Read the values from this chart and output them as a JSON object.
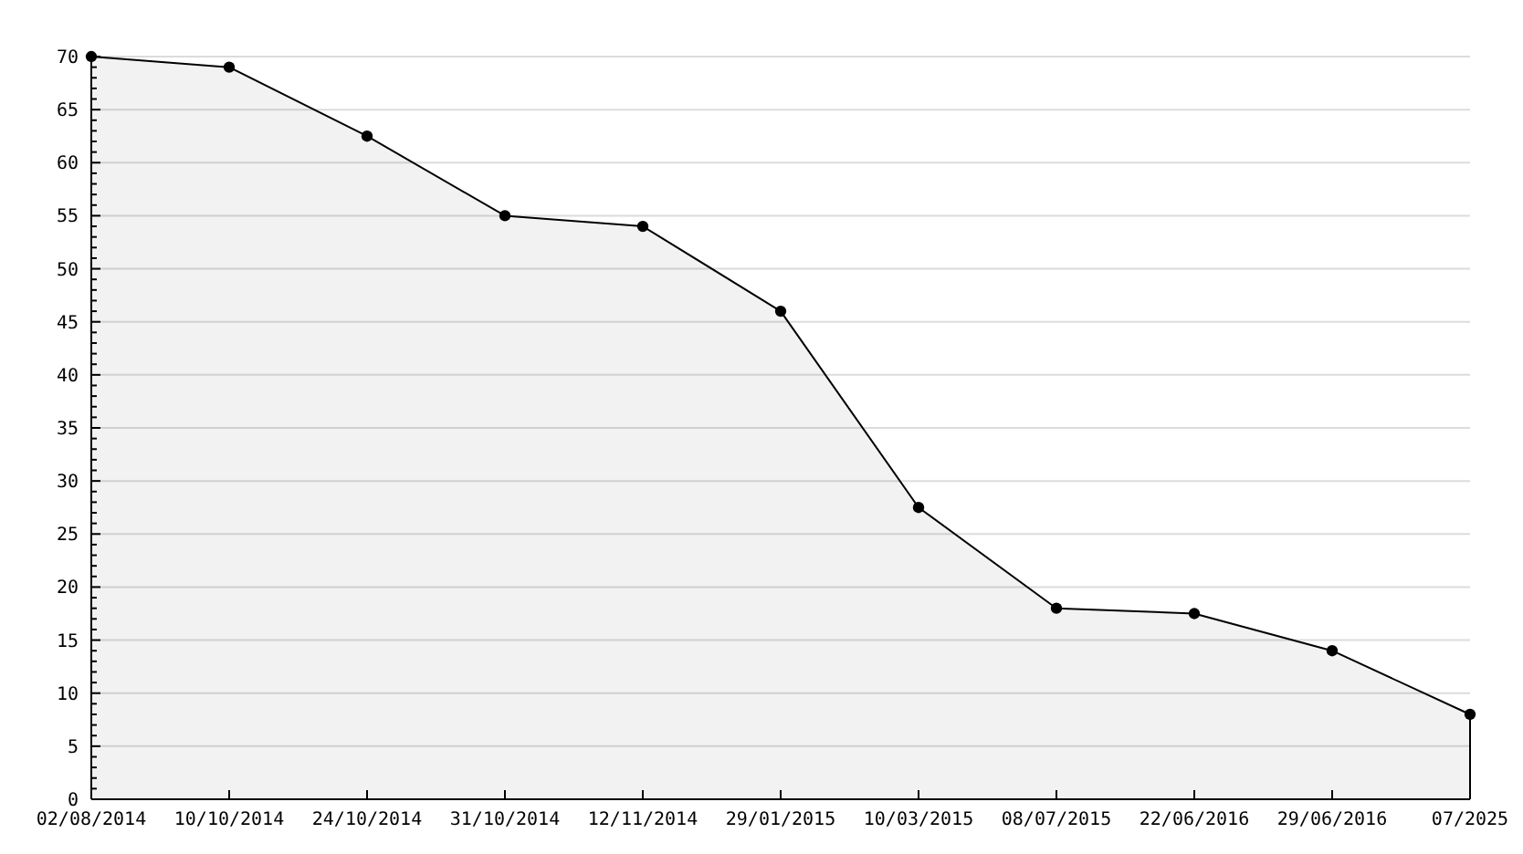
{
  "chart_data": {
    "type": "area",
    "categories": [
      "02/08/2014",
      "10/10/2014",
      "24/10/2014",
      "31/10/2014",
      "12/11/2014",
      "29/01/2015",
      "10/03/2015",
      "08/07/2015",
      "22/06/2016",
      "29/06/2016",
      "07/2025"
    ],
    "series": [
      {
        "color": "#000000",
        "values": [
          70,
          69,
          62.5,
          55,
          54,
          46,
          27.5,
          18,
          17.5,
          14,
          8
        ]
      }
    ],
    "ylim": [
      0,
      70
    ],
    "yticks": [
      0,
      {
        "value": 1,
        "label": null
      },
      {
        "value": 2,
        "label": null
      },
      {
        "value": 3,
        "label": null
      },
      {
        "value": 4,
        "label": null
      },
      5,
      {
        "value": 6,
        "label": null
      },
      {
        "value": 7,
        "label": null
      },
      {
        "value": 8,
        "label": null
      },
      {
        "value": 9,
        "label": null
      },
      10,
      {
        "value": 11,
        "label": null
      },
      {
        "value": 12,
        "label": null
      },
      {
        "value": 13,
        "label": null
      },
      {
        "value": 14,
        "label": null
      },
      15,
      {
        "value": 16,
        "label": null
      },
      {
        "value": 17,
        "label": null
      },
      {
        "value": 18,
        "label": null
      },
      {
        "value": 19,
        "label": null
      },
      20,
      {
        "value": 21,
        "label": null
      },
      {
        "value": 22,
        "label": null
      },
      {
        "value": 23,
        "label": null
      },
      {
        "value": 24,
        "label": null
      },
      25,
      {
        "value": 26,
        "label": null
      },
      {
        "value": 27,
        "label": null
      },
      {
        "value": 28,
        "label": null
      },
      {
        "value": 29,
        "label": null
      },
      30,
      {
        "value": 31,
        "label": null
      },
      {
        "value": 32,
        "label": null
      },
      {
        "value": 33,
        "label": null
      },
      {
        "value": 34,
        "label": null
      },
      35,
      {
        "value": 36,
        "label": null
      },
      {
        "value": 37,
        "label": null
      },
      {
        "value": 38,
        "label": null
      },
      {
        "value": 39,
        "label": null
      },
      40,
      {
        "value": 41,
        "label": null
      },
      {
        "value": 42,
        "label": null
      },
      {
        "value": 43,
        "label": null
      },
      {
        "value": 44,
        "label": null
      },
      45,
      {
        "value": 46,
        "label": null
      },
      {
        "value": 47,
        "label": null
      },
      {
        "value": 48,
        "label": null
      },
      {
        "value": 49,
        "label": null
      },
      50,
      {
        "value": 51,
        "label": null
      },
      {
        "value": 52,
        "label": null
      },
      {
        "value": 53,
        "label": null
      },
      {
        "value": 54,
        "label": null
      },
      55,
      {
        "value": 56,
        "label": null
      },
      {
        "value": 57,
        "label": null
      },
      {
        "value": 58,
        "label": null
      },
      {
        "value": 59,
        "label": null
      },
      60,
      {
        "value": 61,
        "label": null
      },
      {
        "value": 62,
        "label": null
      },
      {
        "value": 63,
        "label": null
      },
      {
        "value": 64,
        "label": null
      },
      65,
      {
        "value": 66,
        "label": null
      },
      {
        "value": 67,
        "label": null
      },
      {
        "value": 68,
        "label": null
      },
      {
        "value": 69,
        "label": null
      },
      70
    ],
    "grid": "y",
    "marker": "circle",
    "line_style": "solid"
  }
}
